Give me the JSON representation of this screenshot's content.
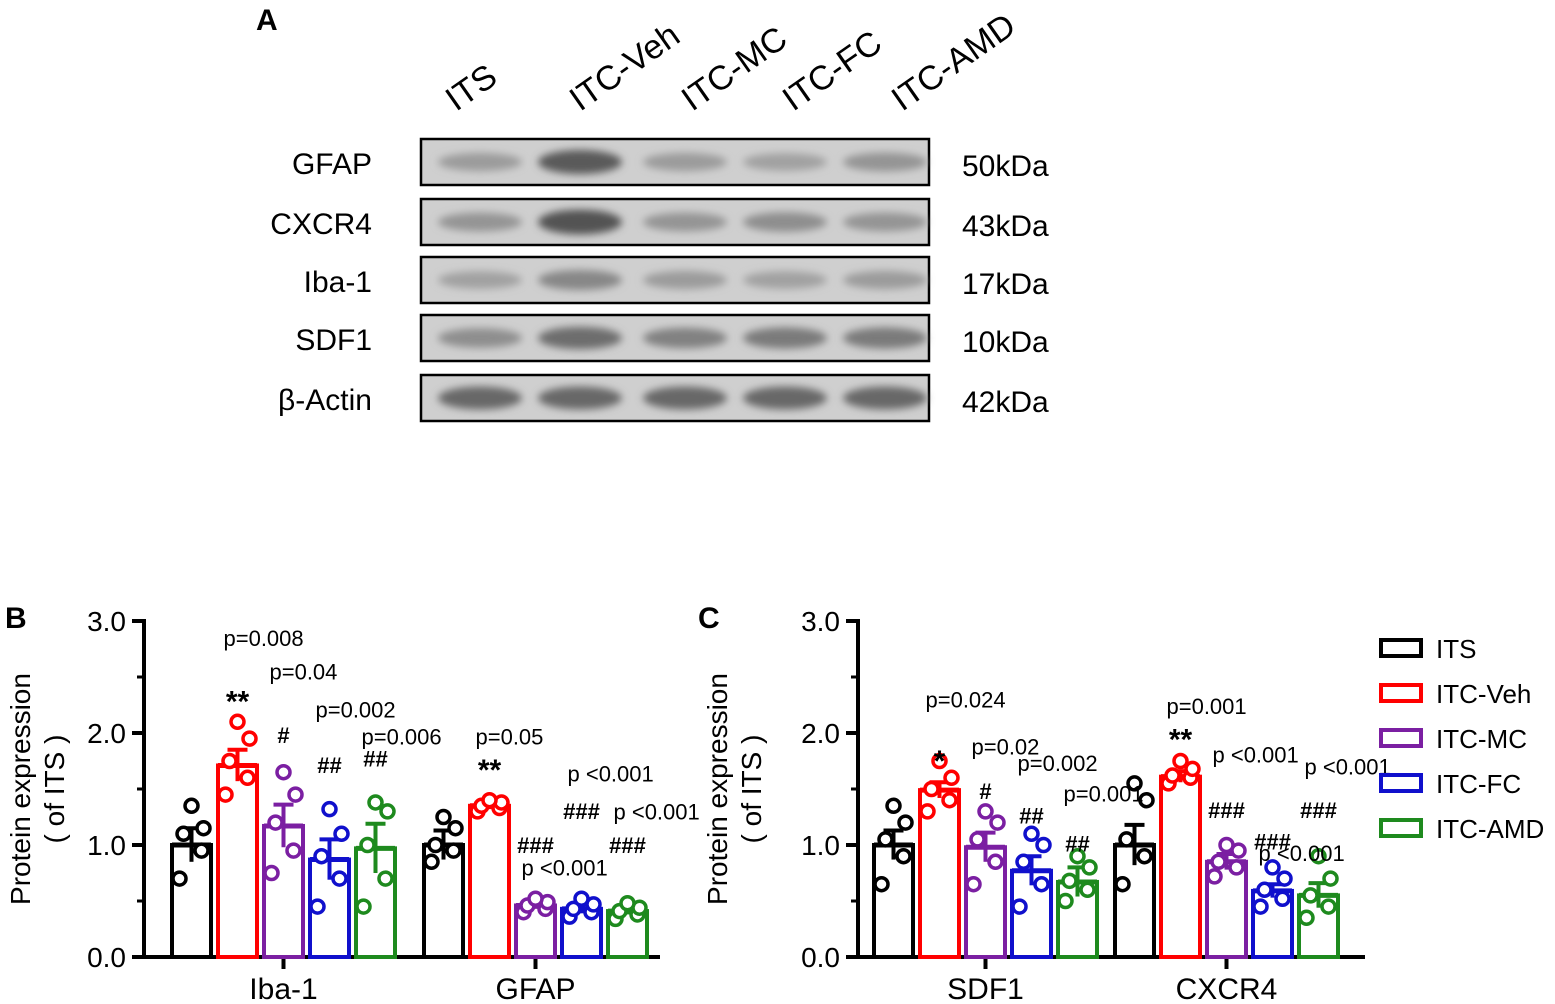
{
  "panel_a": {
    "letter": "A",
    "lanes": [
      "ITS",
      "ITC-Veh",
      "ITC-MC",
      "ITC-FC",
      "ITC-AMD"
    ],
    "blots": [
      {
        "protein": "GFAP",
        "size": "50kDa",
        "intensity": [
          0.35,
          0.85,
          0.35,
          0.3,
          0.4
        ]
      },
      {
        "protein": "CXCR4",
        "size": "43kDa",
        "intensity": [
          0.4,
          0.9,
          0.4,
          0.45,
          0.4
        ]
      },
      {
        "protein": "Iba-1",
        "size": "17kDa",
        "intensity": [
          0.3,
          0.5,
          0.35,
          0.3,
          0.35
        ]
      },
      {
        "protein": "SDF1",
        "size": "10kDa",
        "intensity": [
          0.45,
          0.7,
          0.55,
          0.6,
          0.6
        ]
      },
      {
        "protein": "β-Actin",
        "size": "42kDa",
        "intensity": [
          0.75,
          0.75,
          0.75,
          0.75,
          0.75
        ]
      }
    ]
  },
  "colors": {
    "ITS": "#000000",
    "ITC-Veh": "#ff0000",
    "ITC-MC": "#7b1fa2",
    "ITC-FC": "#1010cc",
    "ITC-AMD": "#1e8a1e"
  },
  "legend": [
    "ITS",
    "ITC-Veh",
    "ITC-MC",
    "ITC-FC",
    "ITC-AMD"
  ],
  "chart_data": [
    {
      "panel": "B",
      "type": "bar",
      "ylabel": "Protein expression\n( of ITS )",
      "ylim": [
        0,
        3.0
      ],
      "yticks": [
        "0.0",
        "1.0",
        "2.0",
        "3.0"
      ],
      "categories": [
        "Iba-1",
        "GFAP"
      ],
      "series": [
        {
          "name": "ITS",
          "values": [
            1.0,
            1.0
          ],
          "sem": [
            0.15,
            0.13
          ],
          "points": [
            [
              0.7,
              0.95,
              1.1,
              1.15,
              1.35
            ],
            [
              0.85,
              0.95,
              1.0,
              1.15,
              1.25
            ]
          ]
        },
        {
          "name": "ITC-Veh",
          "values": [
            1.71,
            1.35
          ],
          "sem": [
            0.14,
            0.03
          ],
          "points": [
            [
              1.45,
              1.6,
              1.75,
              1.95,
              2.1
            ],
            [
              1.3,
              1.33,
              1.35,
              1.38,
              1.4
            ]
          ]
        },
        {
          "name": "ITC-MC",
          "values": [
            1.17,
            0.46
          ],
          "sem": [
            0.19,
            0.03
          ],
          "points": [
            [
              0.75,
              0.95,
              1.2,
              1.45,
              1.65
            ],
            [
              0.4,
              0.43,
              0.46,
              0.49,
              0.52
            ]
          ]
        },
        {
          "name": "ITC-FC",
          "values": [
            0.87,
            0.43
          ],
          "sem": [
            0.18,
            0.04
          ],
          "points": [
            [
              0.45,
              0.7,
              0.9,
              1.1,
              1.32
            ],
            [
              0.36,
              0.4,
              0.43,
              0.47,
              0.52
            ]
          ]
        },
        {
          "name": "ITC-AMD",
          "values": [
            0.97,
            0.41
          ],
          "sem": [
            0.22,
            0.03
          ],
          "points": [
            [
              0.45,
              0.7,
              1.0,
              1.3,
              1.38
            ],
            [
              0.34,
              0.38,
              0.41,
              0.44,
              0.48
            ]
          ]
        }
      ],
      "annotations": [
        {
          "cat": 0,
          "series": 1,
          "stars": "**",
          "p": "p=0.008",
          "star_y": 2.28,
          "p_y": 2.85
        },
        {
          "cat": 0,
          "series": 2,
          "stars": "#",
          "p": "p=0.04",
          "star_y": 2.0,
          "p_y": 2.55
        },
        {
          "cat": 0,
          "series": 3,
          "stars": "##",
          "p": "p=0.002",
          "star_y": 1.73,
          "p_y": 2.21
        },
        {
          "cat": 0,
          "series": 4,
          "stars": "##",
          "p": "p=0.006",
          "star_y": 1.79,
          "p_y": 1.97
        },
        {
          "cat": 1,
          "series": 1,
          "stars": "**",
          "p": "p=0.05",
          "star_y": 1.67,
          "p_y": 1.97
        },
        {
          "cat": 1,
          "series": 2,
          "stars": "###",
          "p": "p <0.001",
          "star_y": 1.02,
          "p_y": 0.8
        },
        {
          "cat": 1,
          "series": 3,
          "stars": "###",
          "p": "p <0.001",
          "star_y": 1.32,
          "p_y": 1.64
        },
        {
          "cat": 1,
          "series": 4,
          "stars": "###",
          "p": "p <0.001",
          "star_y": 1.02,
          "p_y": 1.3
        }
      ]
    },
    {
      "panel": "C",
      "type": "bar",
      "ylabel": "Protein expression\n( of ITS )",
      "ylim": [
        0,
        3.0
      ],
      "yticks": [
        "0.0",
        "1.0",
        "2.0",
        "3.0"
      ],
      "categories": [
        "SDF1",
        "CXCR4"
      ],
      "series": [
        {
          "name": "ITS",
          "values": [
            1.0,
            1.0
          ],
          "sem": [
            0.13,
            0.18
          ],
          "points": [
            [
              0.65,
              0.9,
              1.05,
              1.2,
              1.35
            ],
            [
              0.65,
              0.9,
              1.05,
              1.4,
              1.55
            ]
          ]
        },
        {
          "name": "ITC-Veh",
          "values": [
            1.49,
            1.61
          ],
          "sem": [
            0.07,
            0.05
          ],
          "points": [
            [
              1.3,
              1.4,
              1.5,
              1.6,
              1.75
            ],
            [
              1.55,
              1.6,
              1.62,
              1.68,
              1.75
            ]
          ]
        },
        {
          "name": "ITC-MC",
          "values": [
            0.98,
            0.85
          ],
          "sem": [
            0.13,
            0.07
          ],
          "points": [
            [
              0.65,
              0.85,
              1.05,
              1.2,
              1.3
            ],
            [
              0.72,
              0.8,
              0.85,
              0.95,
              1.0
            ]
          ]
        },
        {
          "name": "ITC-FC",
          "values": [
            0.77,
            0.59
          ],
          "sem": [
            0.13,
            0.06
          ],
          "points": [
            [
              0.45,
              0.65,
              0.85,
              1.0,
              1.1
            ],
            [
              0.45,
              0.52,
              0.6,
              0.7,
              0.8
            ]
          ]
        },
        {
          "name": "ITC-AMD",
          "values": [
            0.67,
            0.55
          ],
          "sem": [
            0.13,
            0.11
          ],
          "points": [
            [
              0.5,
              0.6,
              0.68,
              0.8,
              0.9
            ],
            [
              0.35,
              0.45,
              0.55,
              0.7,
              0.9
            ]
          ]
        }
      ],
      "annotations": [
        {
          "cat": 0,
          "series": 1,
          "stars": "*",
          "p": "p=0.024",
          "star_y": 1.75,
          "p_y": 2.3
        },
        {
          "cat": 0,
          "series": 2,
          "stars": "#",
          "p": "p=0.02",
          "star_y": 1.5,
          "p_y": 1.88
        },
        {
          "cat": 0,
          "series": 3,
          "stars": "##",
          "p": "p=0.002",
          "star_y": 1.28,
          "p_y": 1.73
        },
        {
          "cat": 0,
          "series": 4,
          "stars": "##",
          "p": "p=0.001",
          "star_y": 1.03,
          "p_y": 1.46
        },
        {
          "cat": 1,
          "series": 1,
          "stars": "**",
          "p": "p=0.001",
          "star_y": 1.94,
          "p_y": 2.24
        },
        {
          "cat": 1,
          "series": 2,
          "stars": "###",
          "p": "p <0.001",
          "star_y": 1.33,
          "p_y": 1.81
        },
        {
          "cat": 1,
          "series": 3,
          "stars": "###",
          "p": "p <0.001",
          "star_y": 1.05,
          "p_y": 0.93
        },
        {
          "cat": 1,
          "series": 4,
          "stars": "###",
          "p": "p <0.001",
          "star_y": 1.33,
          "p_y": 1.7
        }
      ]
    }
  ]
}
